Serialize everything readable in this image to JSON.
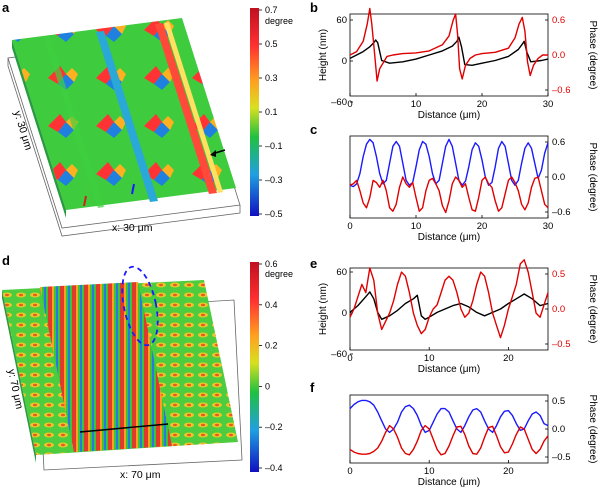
{
  "panel_labels": {
    "a": "a",
    "b": "b",
    "c": "c",
    "d": "d",
    "e": "e",
    "f": "f"
  },
  "maps": {
    "a": {
      "y_label": "y: 30 μm",
      "x_label": "x: 30 μm",
      "colorbar_unit": "degree",
      "colorbar_ticks": [
        "0.7",
        "0.5",
        "0.3",
        "0.1",
        "–0.1",
        "–0.3",
        "–0.5"
      ]
    },
    "d": {
      "y_label": "y: 70 μm",
      "x_label": "x: 70 μm",
      "colorbar_unit": "degree",
      "colorbar_ticks": [
        "0.6",
        "0.4",
        "0.2",
        "0",
        "–0.2",
        "–0.4"
      ]
    }
  },
  "colors": {
    "height": "#000000",
    "phase": "#e00000",
    "blue": "#1a1aff"
  },
  "chart_data": [
    {
      "id": "b",
      "type": "line",
      "xlabel": "Distance (μm)",
      "ylabel_left": "Height (nm)",
      "ylabel_right": "Phase (degree)",
      "xlim": [
        0,
        30
      ],
      "ylim_left": [
        -60,
        60
      ],
      "ylim_right": [
        -0.6,
        0.6
      ],
      "x_ticks": [
        "0",
        "10",
        "20",
        "30"
      ],
      "y_ticks_left": [
        "60",
        "0",
        "–60"
      ],
      "y_ticks_right": [
        "0.6",
        "0.0",
        "–0.6"
      ],
      "series": [
        {
          "axis": "left",
          "color": "#000000",
          "x": [
            0,
            1,
            2,
            3,
            3.6,
            3.9,
            4.2,
            4.8,
            6,
            8,
            10,
            12,
            14,
            15.5,
            16.2,
            16.5,
            16.9,
            17.4,
            18.5,
            20,
            22,
            24,
            25.5,
            26.1,
            26.4,
            26.8,
            27.4,
            29,
            30
          ],
          "y": [
            -5,
            0,
            5,
            12,
            18,
            22,
            18,
            -8,
            -12,
            -10,
            -6,
            0,
            6,
            13,
            20,
            26,
            12,
            -14,
            -15,
            -12,
            -8,
            -2,
            8,
            16,
            20,
            4,
            -10,
            -8,
            -6
          ]
        },
        {
          "axis": "right",
          "color": "#e00000",
          "x": [
            0,
            1,
            2,
            2.6,
            3,
            3.3,
            3.7,
            4.1,
            4.5,
            5,
            5.6,
            6.5,
            8,
            10,
            12,
            14,
            15,
            15.6,
            16,
            16.3,
            16.6,
            17,
            17.5,
            18.2,
            19,
            20,
            22,
            24,
            25,
            25.6,
            26.1,
            26.5,
            26.9,
            27.3,
            27.8,
            28.5,
            29.2,
            30
          ],
          "y": [
            0,
            0.05,
            0.2,
            0.45,
            0.68,
            0.45,
            0.05,
            -0.38,
            -0.2,
            -0.12,
            -0.02,
            0,
            0.02,
            0.03,
            0.06,
            0.15,
            0.28,
            0.5,
            0.6,
            0.3,
            -0.2,
            -0.35,
            -0.15,
            -0.05,
            0,
            0.02,
            0.04,
            0.1,
            0.25,
            0.45,
            0.55,
            0.35,
            -0.1,
            -0.3,
            -0.15,
            -0.05,
            0,
            0
          ]
        }
      ]
    },
    {
      "id": "c",
      "type": "line",
      "xlabel": "Distance (μm)",
      "ylabel_right": "Phase (degree)",
      "xlim": [
        0,
        30
      ],
      "ylim_right": [
        -0.6,
        0.6
      ],
      "x_ticks": [
        "0",
        "10",
        "20",
        "30"
      ],
      "y_ticks_right": [
        "0.6",
        "0.0",
        "–0.6"
      ],
      "series": [
        {
          "axis": "right",
          "color": "#1a1aff",
          "x": [
            0,
            0.5,
            1,
            1.5,
            2,
            2.5,
            3,
            3.5,
            4,
            4.5,
            5,
            5.5,
            6,
            6.5,
            7,
            7.5,
            8,
            8.5,
            9,
            9.5,
            10,
            10.5,
            11,
            11.5,
            12,
            12.5,
            13,
            13.5,
            14,
            14.5,
            15,
            15.5,
            16,
            16.5,
            17,
            17.5,
            18,
            18.5,
            19,
            19.5,
            20,
            20.5,
            21,
            21.5,
            22,
            22.5,
            23,
            23.5,
            24,
            24.5,
            25,
            25.5,
            26,
            26.5,
            27,
            27.5,
            28,
            28.5,
            29,
            29.5,
            30
          ],
          "y": [
            -0.12,
            -0.14,
            -0.1,
            0.05,
            0.3,
            0.48,
            0.55,
            0.5,
            0.3,
            0.05,
            -0.1,
            -0.05,
            0.2,
            0.45,
            0.52,
            0.45,
            0.2,
            -0.05,
            -0.12,
            -0.08,
            0.15,
            0.4,
            0.52,
            0.48,
            0.3,
            0.05,
            -0.1,
            -0.05,
            0.2,
            0.45,
            0.55,
            0.45,
            0.2,
            -0.05,
            -0.12,
            -0.06,
            0.15,
            0.4,
            0.5,
            0.45,
            0.25,
            0,
            -0.12,
            -0.08,
            0.15,
            0.42,
            0.52,
            0.45,
            0.2,
            -0.05,
            -0.12,
            -0.05,
            0.2,
            0.42,
            0.5,
            0.42,
            0.2,
            -0.02,
            0.1,
            0.35,
            0.5
          ]
        },
        {
          "axis": "right",
          "color": "#e00000",
          "x": [
            0,
            0.5,
            1,
            1.5,
            2,
            2.5,
            3,
            3.5,
            4,
            4.5,
            5,
            5.5,
            6,
            6.5,
            7,
            7.5,
            8,
            8.5,
            9,
            9.5,
            10,
            10.5,
            11,
            11.5,
            12,
            12.5,
            13,
            13.5,
            14,
            14.5,
            15,
            15.5,
            16,
            16.5,
            17,
            17.5,
            18,
            18.5,
            19,
            19.5,
            20,
            20.5,
            21,
            21.5,
            22,
            22.5,
            23,
            23.5,
            24,
            24.5,
            25,
            25.5,
            26,
            26.5,
            27,
            27.5,
            28,
            28.5,
            29,
            29.5,
            30
          ],
          "y": [
            -0.12,
            -0.1,
            -0.05,
            -0.2,
            -0.38,
            -0.45,
            -0.3,
            -0.05,
            -0.08,
            -0.15,
            -0.05,
            -0.2,
            -0.45,
            -0.5,
            -0.4,
            -0.15,
            0,
            -0.1,
            -0.15,
            -0.08,
            -0.3,
            -0.5,
            -0.45,
            -0.2,
            -0.05,
            -0.02,
            -0.1,
            -0.2,
            -0.42,
            -0.52,
            -0.35,
            -0.1,
            0,
            -0.05,
            -0.15,
            -0.1,
            -0.3,
            -0.48,
            -0.5,
            -0.3,
            -0.05,
            0,
            -0.1,
            -0.15,
            -0.35,
            -0.5,
            -0.45,
            -0.25,
            -0.05,
            0,
            -0.08,
            -0.2,
            -0.4,
            -0.48,
            -0.38,
            -0.15,
            -0.02,
            0,
            -0.2,
            -0.4,
            -0.45
          ]
        }
      ]
    },
    {
      "id": "e",
      "type": "line",
      "xlabel": "Distance (μm)",
      "ylabel_left": "Height (nm)",
      "ylabel_right": "Phase (degree)",
      "xlim": [
        0,
        25
      ],
      "ylim_left": [
        -60,
        60
      ],
      "ylim_right": [
        -0.5,
        0.5
      ],
      "x_ticks": [
        "0",
        "10",
        "20"
      ],
      "y_ticks_left": [
        "60",
        "0",
        "–60"
      ],
      "y_ticks_right": [
        "0.5",
        "0.0",
        "–0.5"
      ],
      "series": [
        {
          "axis": "left",
          "color": "#000000",
          "x": [
            0,
            1,
            2,
            2.5,
            3,
            3.5,
            4,
            5,
            6,
            7,
            8,
            8.5,
            9,
            9.5,
            10,
            11,
            12,
            13,
            14,
            15,
            16,
            17,
            18,
            19,
            20,
            21,
            22,
            23,
            24,
            25
          ],
          "y": [
            -5,
            5,
            18,
            25,
            15,
            -5,
            -15,
            -10,
            -2,
            8,
            15,
            20,
            -10,
            -15,
            -12,
            -5,
            0,
            5,
            8,
            3,
            -5,
            -10,
            -5,
            0,
            8,
            15,
            22,
            15,
            5,
            8
          ]
        },
        {
          "axis": "right",
          "color": "#e00000",
          "x": [
            0,
            0.5,
            1,
            1.5,
            2,
            2.5,
            3,
            3.5,
            4,
            4.5,
            5,
            5.5,
            6,
            6.5,
            7,
            7.5,
            8,
            8.5,
            9,
            9.5,
            10,
            10.5,
            11,
            11.5,
            12,
            12.5,
            13,
            13.5,
            14,
            14.5,
            15,
            15.5,
            16,
            16.5,
            17,
            17.5,
            18,
            18.5,
            19,
            19.5,
            20,
            20.5,
            21,
            21.5,
            22,
            22.5,
            23,
            23.5,
            24,
            24.5,
            25
          ],
          "y": [
            -0.1,
            0,
            0.15,
            0.3,
            0.2,
            0.5,
            0.35,
            -0.05,
            -0.25,
            -0.15,
            -0.05,
            0.1,
            0.3,
            0.45,
            0.4,
            0.2,
            -0.05,
            -0.2,
            -0.3,
            -0.25,
            -0.1,
            0,
            0.05,
            0.2,
            0.35,
            0.4,
            0.35,
            0.2,
            0,
            -0.1,
            -0.05,
            0.1,
            0.3,
            0.45,
            0.4,
            0.2,
            -0.05,
            -0.2,
            -0.35,
            -0.2,
            0,
            0.15,
            0.3,
            0.55,
            0.6,
            0.45,
            0.2,
            -0.05,
            -0.1,
            0.05,
            0.2
          ]
        }
      ]
    },
    {
      "id": "f",
      "type": "line",
      "xlabel": "Distance (μm)",
      "ylabel_right": "Phase (degree)",
      "xlim": [
        0,
        25
      ],
      "ylim_right": [
        -0.5,
        0.5
      ],
      "x_ticks": [
        "0",
        "10",
        "20"
      ],
      "y_ticks_right": [
        "0.5",
        "0.0",
        "–0.5"
      ],
      "series": [
        {
          "axis": "right",
          "color": "#1a1aff",
          "x": [
            0,
            0.5,
            1,
            1.5,
            2,
            2.5,
            3,
            3.5,
            4,
            4.5,
            5,
            5.5,
            6,
            6.5,
            7,
            7.5,
            8,
            8.5,
            9,
            9.5,
            10,
            10.5,
            11,
            11.5,
            12,
            12.5,
            13,
            13.5,
            14,
            14.5,
            15,
            15.5,
            16,
            16.5,
            17,
            17.5,
            18,
            18.5,
            19,
            19.5,
            20,
            20.5,
            21,
            21.5,
            22,
            22.5,
            23,
            23.5,
            24,
            24.5,
            25
          ],
          "y": [
            0.3,
            0.36,
            0.4,
            0.42,
            0.42,
            0.4,
            0.35,
            0.25,
            0.12,
            0,
            -0.05,
            0,
            0.1,
            0.25,
            0.33,
            0.35,
            0.3,
            0.2,
            0.05,
            -0.05,
            -0.02,
            0.1,
            0.22,
            0.3,
            0.3,
            0.25,
            0.12,
            0,
            -0.05,
            0.05,
            0.18,
            0.28,
            0.3,
            0.25,
            0.12,
            0,
            -0.05,
            0.05,
            0.18,
            0.26,
            0.27,
            0.2,
            0.08,
            -0.02,
            0,
            0.12,
            0.22,
            0.25,
            0.2,
            0.08,
            0.05
          ]
        },
        {
          "axis": "right",
          "color": "#e00000",
          "x": [
            0,
            0.5,
            1,
            1.5,
            2,
            2.5,
            3,
            3.5,
            4,
            4.5,
            5,
            5.5,
            6,
            6.5,
            7,
            7.5,
            8,
            8.5,
            9,
            9.5,
            10,
            10.5,
            11,
            11.5,
            12,
            12.5,
            13,
            13.5,
            14,
            14.5,
            15,
            15.5,
            16,
            16.5,
            17,
            17.5,
            18,
            18.5,
            19,
            19.5,
            20,
            20.5,
            21,
            21.5,
            22,
            22.5,
            23,
            23.5,
            24,
            24.5,
            25
          ],
          "y": [
            -0.3,
            -0.34,
            -0.36,
            -0.37,
            -0.37,
            -0.36,
            -0.33,
            -0.28,
            -0.18,
            -0.05,
            0.05,
            0,
            -0.12,
            -0.28,
            -0.36,
            -0.38,
            -0.3,
            -0.18,
            -0.02,
            0.05,
            0,
            -0.15,
            -0.3,
            -0.38,
            -0.36,
            -0.25,
            -0.1,
            0.03,
            0.04,
            -0.08,
            -0.25,
            -0.36,
            -0.37,
            -0.28,
            -0.12,
            0.02,
            0.04,
            -0.1,
            -0.26,
            -0.35,
            -0.34,
            -0.22,
            -0.08,
            0.03,
            0,
            -0.15,
            -0.3,
            -0.36,
            -0.3,
            -0.18,
            -0.1
          ]
        }
      ]
    }
  ]
}
